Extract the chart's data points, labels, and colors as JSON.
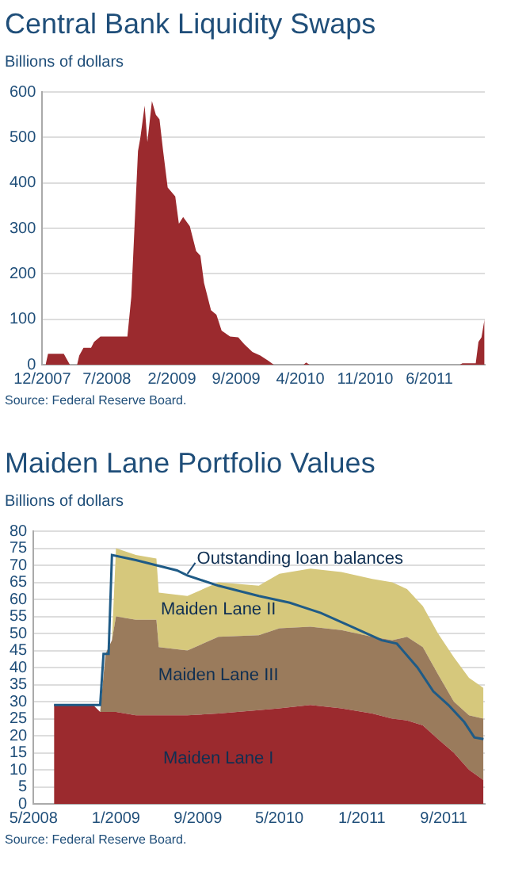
{
  "chart_data": [
    {
      "type": "area",
      "title": "Central Bank Liquidity Swaps",
      "ylabel": "Billions of dollars",
      "x": [
        "2007-12-12",
        "2007-12-20",
        "2008-02-10",
        "2008-03-01",
        "2008-03-25",
        "2008-04-01",
        "2008-04-15",
        "2008-05-10",
        "2008-05-20",
        "2008-06-10",
        "2008-09-07",
        "2008-09-20",
        "2008-10-12",
        "2008-10-20",
        "2008-11-03",
        "2008-11-12",
        "2008-11-27",
        "2008-12-10",
        "2008-12-22",
        "2009-01-03",
        "2009-01-18",
        "2009-02-12",
        "2009-02-24",
        "2009-03-10",
        "2009-04-01",
        "2009-04-22",
        "2009-05-06",
        "2009-05-18",
        "2009-06-10",
        "2009-06-28",
        "2009-07-15",
        "2009-08-12",
        "2009-09-08",
        "2009-09-28",
        "2009-10-25",
        "2009-11-20",
        "2009-12-18",
        "2010-01-03",
        "2010-04-12",
        "2010-04-20",
        "2010-05-01",
        "2011-09-10",
        "2011-09-18",
        "2011-11-01",
        "2011-11-10",
        "2011-11-20",
        "2011-11-30"
      ],
      "values": [
        0,
        24,
        24,
        0,
        0,
        20,
        37,
        37,
        50,
        62,
        62,
        150,
        470,
        500,
        570,
        490,
        580,
        550,
        540,
        470,
        390,
        370,
        310,
        325,
        305,
        250,
        240,
        180,
        120,
        110,
        75,
        62,
        60,
        45,
        28,
        20,
        8,
        0,
        0,
        5,
        0,
        0,
        3,
        3,
        50,
        60,
        100
      ],
      "color": "#9b2a2e",
      "xlim": [
        "2007-12-01",
        "2011-12-01"
      ],
      "xticks": [
        {
          "value": "2007-12-01",
          "label": "12/2007"
        },
        {
          "value": "2008-07-01",
          "label": "7/2008"
        },
        {
          "value": "2009-02-01",
          "label": "2/2009"
        },
        {
          "value": "2009-09-01",
          "label": "9/2009"
        },
        {
          "value": "2010-04-01",
          "label": "4/2010"
        },
        {
          "value": "2010-11-01",
          "label": "11/2010"
        },
        {
          "value": "2011-06-01",
          "label": "6/2011"
        }
      ],
      "ylim": [
        0,
        600
      ],
      "yticks": [
        0,
        100,
        200,
        300,
        400,
        500,
        600
      ],
      "grid": "y",
      "legend": false,
      "annotations": [
        "Source: Federal Reserve Board."
      ]
    },
    {
      "type": "area",
      "stacked": true,
      "title": "Maiden Lane Portfolio Values",
      "ylabel": "Billions of dollars",
      "x": [
        "2008-07-01",
        "2008-10-25",
        "2008-11-15",
        "2008-12-01",
        "2008-12-20",
        "2009-01-01",
        "2009-03-01",
        "2009-05-01",
        "2009-05-08",
        "2009-08-01",
        "2009-11-01",
        "2010-03-01",
        "2010-05-01",
        "2010-08-01",
        "2010-11-01",
        "2011-02-01",
        "2011-04-01",
        "2011-05-15",
        "2011-07-01",
        "2011-08-15",
        "2011-10-01",
        "2011-11-15",
        "2011-12-28"
      ],
      "series": [
        {
          "name": "Maiden Lane I",
          "color": "#9b2a2e",
          "values": [
            29,
            29,
            27,
            27,
            27,
            27,
            26,
            26,
            26,
            26,
            26.5,
            27.5,
            28,
            29,
            28,
            26.5,
            25,
            24.5,
            23,
            19,
            15,
            10,
            7
          ]
        },
        {
          "name": "Maiden Lane III",
          "color": "#9a7b5c",
          "values": [
            0,
            0,
            0,
            17,
            21,
            28,
            28,
            28,
            20,
            19,
            22.5,
            22,
            23.5,
            23,
            23,
            22.5,
            23,
            24.5,
            23,
            19,
            15,
            16,
            18
          ]
        },
        {
          "name": "Maiden Lane II",
          "color": "#d6c87c",
          "values": [
            0,
            0,
            0,
            0,
            0,
            20,
            19,
            18,
            16,
            16,
            16,
            14.5,
            16,
            17,
            17,
            17,
            17,
            14,
            12,
            12,
            13,
            11,
            9
          ]
        },
        {
          "name": "Outstanding loan balances",
          "type": "line",
          "color": "#1f5b86",
          "x": [
            "2008-07-01",
            "2008-11-15",
            "2008-11-25",
            "2008-12-10",
            "2008-12-20",
            "2009-03-01",
            "2009-05-01",
            "2009-07-01",
            "2009-08-01",
            "2009-11-01",
            "2010-03-01",
            "2010-06-01",
            "2010-09-01",
            "2010-12-01",
            "2011-03-01",
            "2011-04-15",
            "2011-06-15",
            "2011-08-01",
            "2011-09-15",
            "2011-11-01",
            "2011-12-01",
            "2011-12-28"
          ],
          "values": [
            29,
            29,
            44,
            44,
            73,
            71.5,
            70,
            68.5,
            67,
            64,
            61,
            59,
            56,
            52,
            48,
            47,
            40,
            33,
            29,
            24,
            19.5,
            19
          ]
        }
      ],
      "xlim": [
        "2008-05-01",
        "2012-01-01"
      ],
      "xticks": [
        {
          "value": "2008-05-01",
          "label": "5/2008"
        },
        {
          "value": "2009-01-01",
          "label": "1/2009"
        },
        {
          "value": "2009-09-01",
          "label": "9/2009"
        },
        {
          "value": "2010-05-01",
          "label": "5/2010"
        },
        {
          "value": "2011-01-01",
          "label": "1/2011"
        },
        {
          "value": "2011-09-01",
          "label": "9/2011"
        }
      ],
      "ylim": [
        0,
        80
      ],
      "yticks": [
        0,
        5,
        10,
        15,
        20,
        25,
        30,
        35,
        40,
        45,
        50,
        55,
        60,
        65,
        70,
        75,
        80
      ],
      "grid": "y",
      "annotations": [
        "Source: Federal Reserve Board."
      ]
    }
  ]
}
